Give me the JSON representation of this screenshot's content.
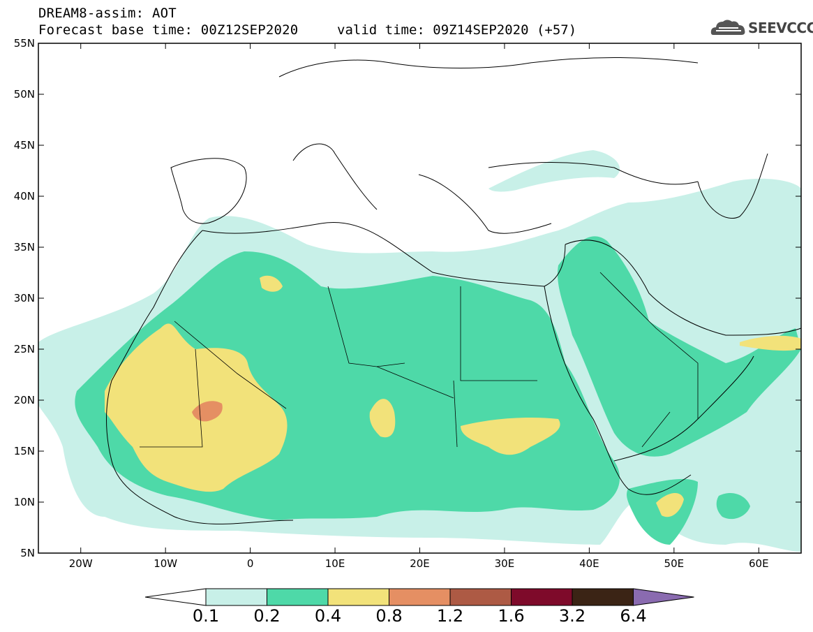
{
  "title": {
    "line1": "DREAM8-assim: AOT",
    "line2": "Forecast base time: 00Z12SEP2020",
    "valid": "valid time: 09Z14SEP2020 (+57)"
  },
  "logo": {
    "text": "SEEVCCC",
    "icon": "cloud-icon"
  },
  "map": {
    "lon_range": [
      -25,
      65
    ],
    "lat_range": [
      5,
      55
    ],
    "lat_ticks": [
      "55N",
      "50N",
      "45N",
      "40N",
      "35N",
      "30N",
      "25N",
      "20N",
      "15N",
      "10N",
      "5N"
    ],
    "lon_ticks": [
      "20W",
      "10W",
      "0",
      "10E",
      "20E",
      "30E",
      "40E",
      "50E",
      "60E"
    ]
  },
  "colorbar": {
    "labels": [
      "0.1",
      "0.2",
      "0.4",
      "0.8",
      "1.2",
      "1.6",
      "3.2",
      "6.4"
    ],
    "colors": [
      "#ffffff",
      "#c8f0e8",
      "#4ed9a8",
      "#f2e27a",
      "#e58f63",
      "#ad5a44",
      "#7e0a2a",
      "#3b2415",
      "#8a6bb0"
    ]
  }
}
